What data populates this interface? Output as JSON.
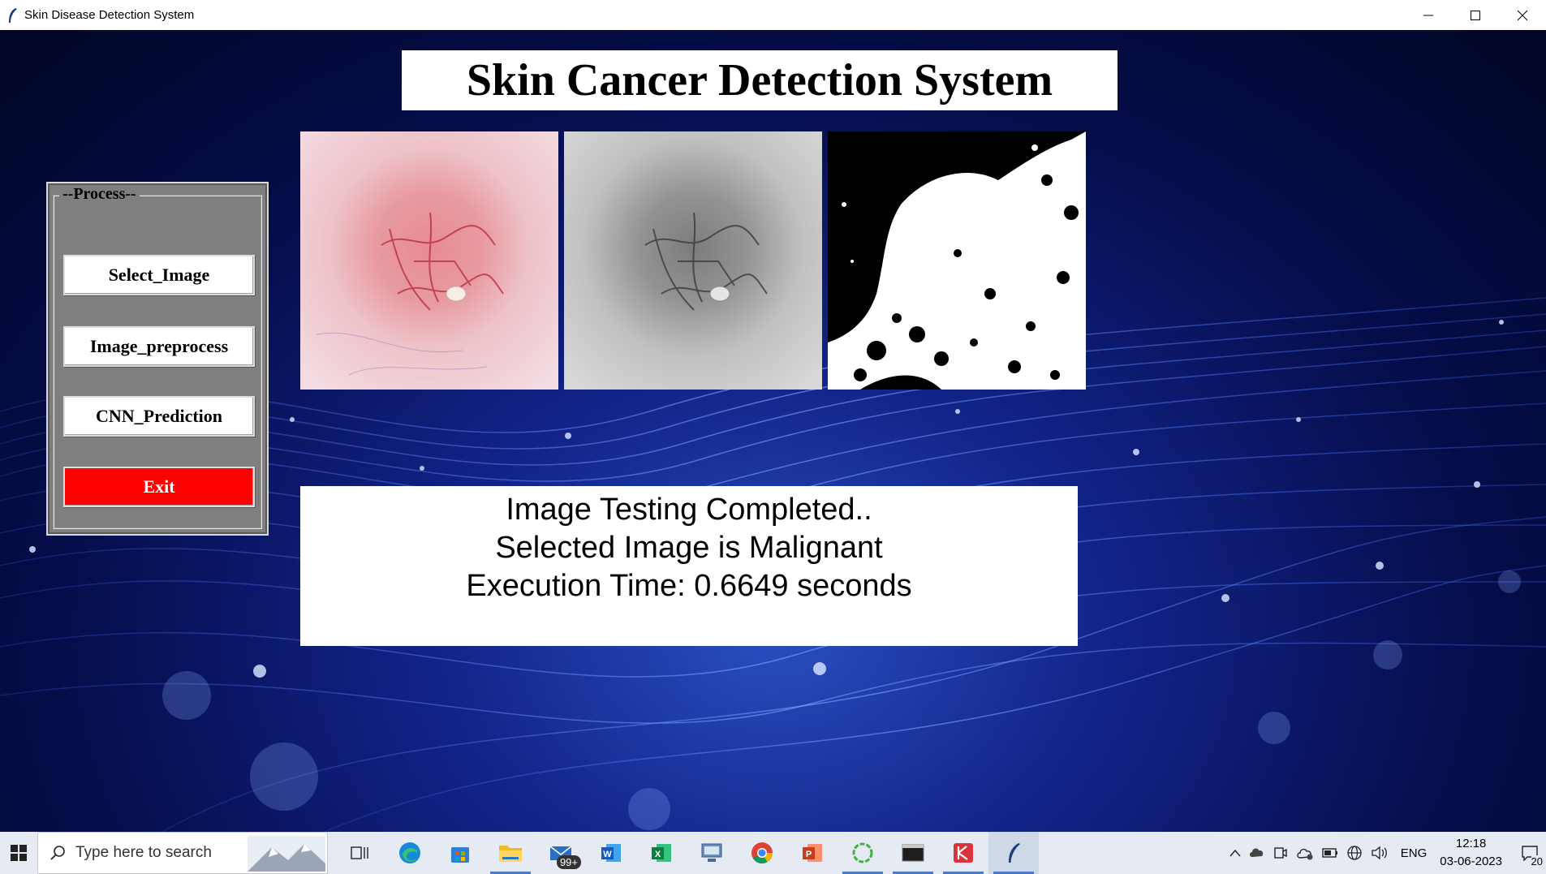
{
  "window": {
    "title": "Skin Disease Detection System",
    "icon": "feather-icon",
    "controls": [
      "minimize-icon",
      "maximize-icon",
      "close-icon"
    ]
  },
  "app": {
    "heading": "Skin Cancer Detection System",
    "images": [
      "original-lesion-image",
      "grayscale-lesion-image",
      "binary-segmented-image"
    ],
    "process": {
      "legend": "--Process--",
      "buttons": {
        "select": "Select_Image",
        "preprocess": "Image_preprocess",
        "predict": "CNN_Prediction",
        "exit": "Exit"
      },
      "exit_color": "#ff0000"
    },
    "result": {
      "line1": "Image Testing Completed..",
      "line2": "Selected Image is Malignant",
      "line3": "Execution Time: 0.6649 seconds"
    }
  },
  "taskbar": {
    "search_placeholder": "Type here to search",
    "apps": [
      "task-view-icon",
      "edge-icon",
      "store-icon",
      "file-explorer-icon",
      "mail-icon",
      "word-icon",
      "excel-icon",
      "network-app-icon",
      "chrome-icon",
      "powerpoint-icon",
      "anaconda-icon",
      "terminal-icon",
      "app-icon",
      "python-feather-icon"
    ],
    "mail_badge": "99+",
    "tray": {
      "language": "ENG",
      "time": "12:18",
      "date": "03-06-2023",
      "notifications": "20"
    }
  }
}
